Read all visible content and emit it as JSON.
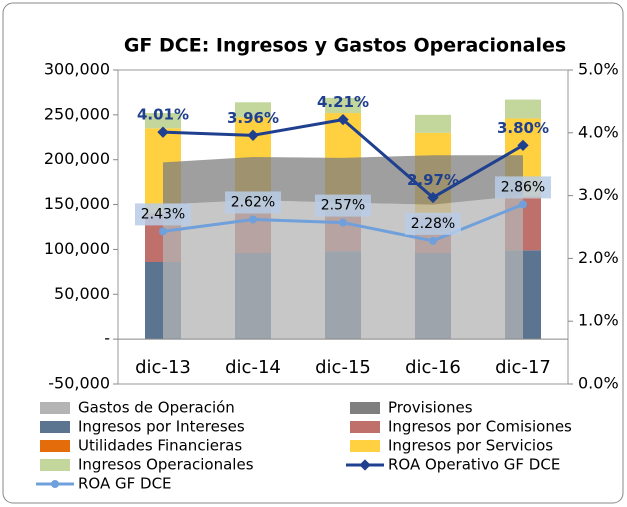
{
  "chart_data": {
    "type": "combo",
    "title": "GF DCE: Ingresos y Gastos Operacionales",
    "categories": [
      "dic-13",
      "dic-14",
      "dic-15",
      "dic-16",
      "dic-17"
    ],
    "ylim": [
      -50000,
      300000
    ],
    "yticks": [
      {
        "value": -50000,
        "label": "-50,000"
      },
      {
        "value": 0,
        "label": "-"
      },
      {
        "value": 50000,
        "label": "50,000"
      },
      {
        "value": 100000,
        "label": "100,000"
      },
      {
        "value": 150000,
        "label": "150,000"
      },
      {
        "value": 200000,
        "label": "200,000"
      },
      {
        "value": 250000,
        "label": "250,000"
      },
      {
        "value": 300000,
        "label": "300,000"
      }
    ],
    "y2lim": [
      0,
      5
    ],
    "y2ticks": [
      {
        "value": 0,
        "label": "0.0%"
      },
      {
        "value": 1,
        "label": "1.0%"
      },
      {
        "value": 2,
        "label": "2.0%"
      },
      {
        "value": 3,
        "label": "3.0%"
      },
      {
        "value": 4,
        "label": "4.0%"
      },
      {
        "value": 5,
        "label": "5.0%"
      }
    ],
    "series": [
      {
        "name": "Gastos de Operación",
        "type": "area",
        "color": "#b4b4b4",
        "values": [
          150000,
          155000,
          152000,
          150000,
          160000
        ]
      },
      {
        "name": "Provisiones",
        "type": "area",
        "color": "#7f7f7f",
        "values": [
          47000,
          48000,
          50000,
          55000,
          45000
        ]
      },
      {
        "name": "Ingresos por Intereses",
        "type": "bar",
        "color": "#5b7590",
        "values": [
          86000,
          96000,
          98000,
          96000,
          99000
        ]
      },
      {
        "name": "Ingresos por Comisiones",
        "type": "bar",
        "color": "#c0706a",
        "values": [
          52000,
          50000,
          44000,
          39000,
          58000
        ]
      },
      {
        "name": "Utilidades Financieras",
        "type": "bar",
        "color": "#e46c0a",
        "values": [
          2000,
          2000,
          2000,
          3000,
          2000
        ]
      },
      {
        "name": "Ingresos por Servicios",
        "type": "bar",
        "color": "#ffd040",
        "values": [
          95000,
          99000,
          108000,
          92000,
          87000
        ]
      },
      {
        "name": "Ingresos Operacionales",
        "type": "bar",
        "color": "#c3d69b",
        "values": [
          17000,
          17000,
          17000,
          20000,
          21000
        ]
      },
      {
        "name": "ROA Operativo GF DCE",
        "type": "line",
        "axis": "y2",
        "color": "#1f3f8f",
        "values": [
          4.01,
          3.96,
          4.21,
          2.97,
          3.8
        ],
        "value_labels": [
          "4.01%",
          "3.96%",
          "4.21%",
          "2.97%",
          "3.80%"
        ]
      },
      {
        "name": "ROA GF DCE",
        "type": "line",
        "axis": "y2",
        "color": "#6fa0dc",
        "values": [
          2.43,
          2.62,
          2.57,
          2.28,
          2.86
        ],
        "value_labels": [
          "2.43%",
          "2.62%",
          "2.57%",
          "2.28%",
          "2.86%"
        ]
      }
    ]
  }
}
